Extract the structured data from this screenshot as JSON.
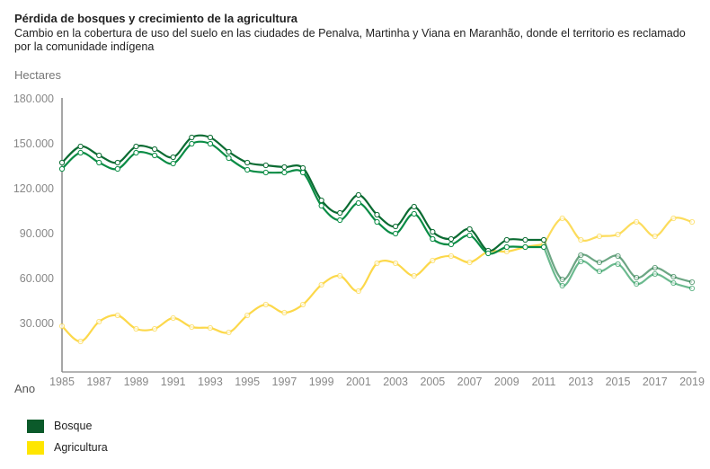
{
  "chart_data": {
    "type": "line",
    "title": "Pérdida de bosques y crecimiento de la agricultura",
    "subtitle": "Cambio en la cobertura de uso del suelo en las ciudades de Penalva, Martinha y Viana en Maranhão, donde el territorio es reclamado por la comunidade indígena",
    "ylabel": "Hectares",
    "xlabel": "Ano",
    "ylim": [
      0,
      180000
    ],
    "xlim": [
      1985,
      2019
    ],
    "yticks": [
      30000,
      60000,
      90000,
      120000,
      150000,
      180000
    ],
    "ytick_labels": [
      "30.000",
      "60.000",
      "90.000",
      "120.000",
      "150.000",
      "180.000"
    ],
    "xtick_labels": [
      "1985",
      "1987",
      "1989",
      "1991",
      "1993",
      "1995",
      "1997",
      "1999",
      "2001",
      "2003",
      "2005",
      "2007",
      "2009",
      "2011",
      "2013",
      "2015",
      "2017",
      "2019"
    ],
    "grid": false,
    "legend_position": "bottom-left",
    "x": [
      1985,
      1986,
      1987,
      1988,
      1989,
      1990,
      1991,
      1992,
      1993,
      1994,
      1995,
      1996,
      1997,
      1998,
      1999,
      2000,
      2001,
      2002,
      2003,
      2004,
      2005,
      2006,
      2007,
      2008,
      2009,
      2010,
      2011,
      2012,
      2013,
      2014,
      2015,
      2016,
      2017,
      2018,
      2019
    ],
    "series": [
      {
        "name": "Bosque",
        "legend": true,
        "color": "#0b6b32",
        "values": [
          136800,
          147600,
          141600,
          136800,
          147600,
          145800,
          140400,
          153600,
          153600,
          144000,
          136800,
          135000,
          133800,
          133200,
          111600,
          103200,
          115200,
          102000,
          94200,
          107400,
          90600,
          85800,
          92400,
          78000,
          85200,
          85200,
          85200,
          58800,
          75000,
          70200,
          74400,
          60000,
          66600,
          60600,
          57000
        ]
      },
      {
        "name": "Bosque (serie 2)",
        "legend": false,
        "color": "#0a8c45",
        "values": [
          132600,
          143400,
          136800,
          132600,
          143400,
          141600,
          136200,
          149400,
          149400,
          139800,
          132000,
          130200,
          130200,
          130200,
          108000,
          98400,
          109800,
          97200,
          89400,
          102600,
          85800,
          82200,
          88200,
          76200,
          80400,
          80400,
          80400,
          54600,
          70800,
          64200,
          69000,
          55800,
          62400,
          56400,
          52800
        ]
      },
      {
        "name": "Agricultura",
        "legend": true,
        "color": "#fcd84a",
        "values": [
          27600,
          17400,
          30600,
          34800,
          25800,
          25800,
          33000,
          27000,
          26400,
          23400,
          34800,
          42000,
          36600,
          42000,
          55200,
          61200,
          51000,
          69600,
          69600,
          61200,
          71400,
          74400,
          70200,
          77400,
          77400,
          80400,
          82200,
          99600,
          85200,
          87600,
          88800,
          97200,
          87600,
          99600,
          97200
        ]
      }
    ],
    "faded_after": 2011
  },
  "legend": {
    "items": [
      {
        "label": "Bosque",
        "color": "#0b5a2a"
      },
      {
        "label": "Agricultura",
        "color": "#ffe600"
      }
    ]
  }
}
